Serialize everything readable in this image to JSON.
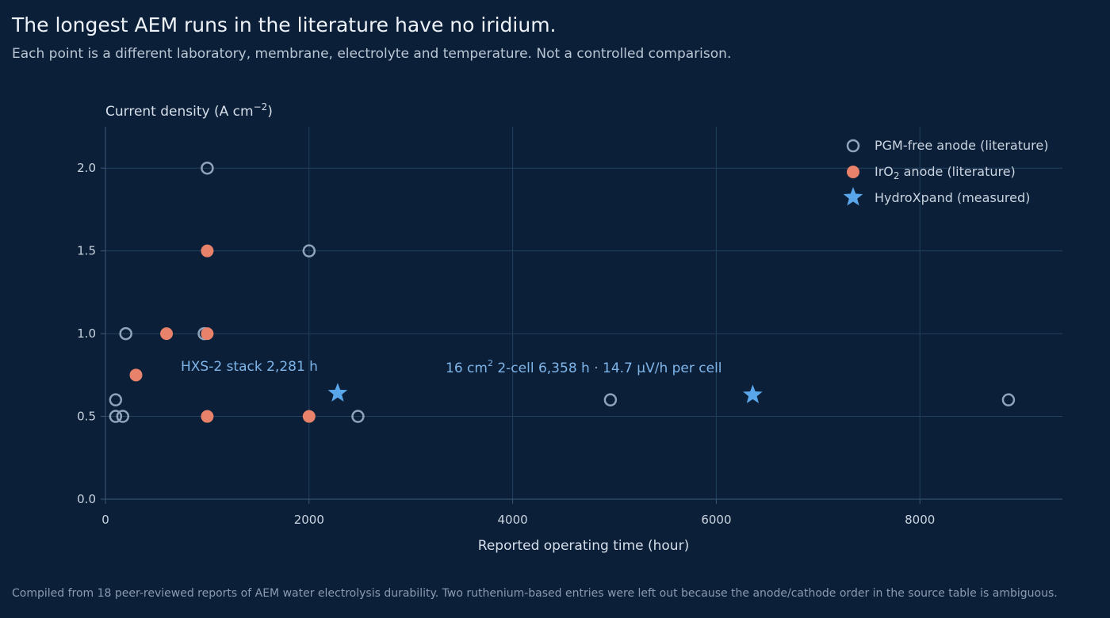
{
  "title": "The longest AEM runs in the literature have no iridium.",
  "subtitle": "Each point is a different laboratory, membrane, electrolyte and temperature. Not a controlled comparison.",
  "footnote": "Compiled from 18 peer-reviewed reports of AEM water electrolysis durability. Two ruthenium-based entries were left out because the anode/cathode order in the source table is ambiguous.",
  "colors": {
    "pgm_free": "#8fa3bb",
    "iro2": "#e8826a",
    "hydroxpand": "#5aa6ea",
    "background": "#0c1f38"
  },
  "chart_data": {
    "type": "scatter",
    "xlabel": "Reported operating time (hour)",
    "ylabel": {
      "base": "Current density (A cm",
      "sup": "−2",
      "end": ")"
    },
    "xlim": [
      0,
      9400
    ],
    "ylim": [
      0,
      2.25
    ],
    "xticks": [
      0,
      2000,
      4000,
      6000,
      8000
    ],
    "yticks": [
      0.0,
      0.5,
      1.0,
      1.5,
      2.0
    ],
    "xtick_labels": [
      "0",
      "2000",
      "4000",
      "6000",
      "8000"
    ],
    "ytick_labels": [
      "0.0",
      "0.5",
      "1.0",
      "1.5",
      "2.0"
    ],
    "grid": true,
    "legend_position": "top-right",
    "series": [
      {
        "key": "pgm",
        "name": "PGM-free anode (literature)",
        "marker": "open-circle",
        "points": [
          {
            "x": 1000,
            "y": 2.0
          },
          {
            "x": 2000,
            "y": 1.5
          },
          {
            "x": 200,
            "y": 1.0
          },
          {
            "x": 970,
            "y": 1.0
          },
          {
            "x": 100,
            "y": 0.6
          },
          {
            "x": 100,
            "y": 0.5
          },
          {
            "x": 170,
            "y": 0.5
          },
          {
            "x": 2480,
            "y": 0.5
          },
          {
            "x": 4960,
            "y": 0.6
          },
          {
            "x": 8870,
            "y": 0.6
          }
        ]
      },
      {
        "key": "iro2",
        "name": "IrO₂ anode (literature)",
        "name_parts": {
          "base": "IrO",
          "sub": "2",
          "end": " anode (literature)"
        },
        "marker": "filled-circle",
        "points": [
          {
            "x": 1000,
            "y": 1.5
          },
          {
            "x": 600,
            "y": 1.0
          },
          {
            "x": 1000,
            "y": 1.0
          },
          {
            "x": 300,
            "y": 0.75
          },
          {
            "x": 1000,
            "y": 0.5
          },
          {
            "x": 2000,
            "y": 0.5
          }
        ]
      },
      {
        "key": "hx",
        "name": "HydroXpand (measured)",
        "marker": "star",
        "points": [
          {
            "x": 2281,
            "y": 0.64
          },
          {
            "x": 6358,
            "y": 0.63
          }
        ]
      }
    ],
    "annotations": [
      {
        "key": "stack",
        "text": "HXS-2 stack  2,281 h",
        "x": 2281,
        "y": 0.64
      },
      {
        "key": "cell",
        "pre": "16 cm",
        "sup": "2",
        "post": " 2-cell  6,358 h  ·  14.7 µV/h per cell",
        "x": 6358,
        "y": 0.63
      }
    ]
  }
}
